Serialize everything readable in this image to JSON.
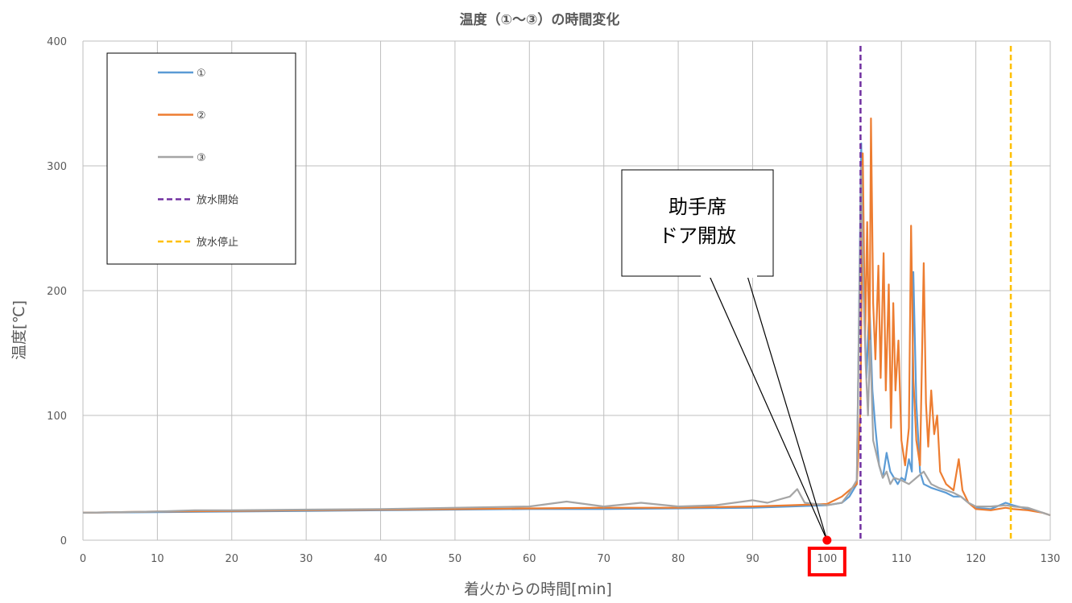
{
  "chart_data": {
    "type": "line",
    "title": "温度（①～③）の時間変化",
    "xlabel": "着火からの時間[min]",
    "ylabel": "温度[℃]",
    "xlim": [
      0,
      130
    ],
    "ylim": [
      0,
      400
    ],
    "xticks": [
      0,
      10,
      20,
      30,
      40,
      50,
      60,
      70,
      80,
      90,
      100,
      110,
      120,
      130
    ],
    "yticks": [
      0,
      100,
      200,
      300,
      400
    ],
    "grid": true,
    "legend_position": "top-left",
    "series": [
      {
        "name": "①",
        "color": "#5B9BD5",
        "points": [
          [
            0,
            22
          ],
          [
            10,
            22.5
          ],
          [
            20,
            23
          ],
          [
            30,
            23.5
          ],
          [
            40,
            24
          ],
          [
            50,
            24.5
          ],
          [
            60,
            25
          ],
          [
            70,
            25
          ],
          [
            80,
            25.5
          ],
          [
            90,
            26
          ],
          [
            95,
            27
          ],
          [
            100,
            28
          ],
          [
            102,
            30
          ],
          [
            103,
            35
          ],
          [
            104,
            45
          ],
          [
            104.6,
            318
          ],
          [
            104.9,
            200
          ],
          [
            105.3,
            130
          ],
          [
            105.7,
            190
          ],
          [
            106.1,
            120
          ],
          [
            106.5,
            90
          ],
          [
            107,
            60
          ],
          [
            107.5,
            50
          ],
          [
            108,
            70
          ],
          [
            108.5,
            55
          ],
          [
            109,
            50
          ],
          [
            109.5,
            45
          ],
          [
            110,
            50
          ],
          [
            110.5,
            48
          ],
          [
            111,
            65
          ],
          [
            111.4,
            55
          ],
          [
            111.6,
            215
          ],
          [
            112,
            110
          ],
          [
            112.5,
            55
          ],
          [
            113,
            45
          ],
          [
            114,
            42
          ],
          [
            115,
            40
          ],
          [
            116,
            38
          ],
          [
            117,
            35
          ],
          [
            118,
            35
          ],
          [
            119,
            30
          ],
          [
            120,
            26
          ],
          [
            122,
            25
          ],
          [
            124,
            30
          ],
          [
            125,
            28
          ],
          [
            127,
            25
          ],
          [
            129,
            22
          ],
          [
            130,
            20
          ]
        ]
      },
      {
        "name": "②",
        "color": "#ED7D31",
        "points": [
          [
            0,
            22
          ],
          [
            10,
            23
          ],
          [
            20,
            23.5
          ],
          [
            30,
            24
          ],
          [
            40,
            24.5
          ],
          [
            50,
            25
          ],
          [
            60,
            25.5
          ],
          [
            70,
            26
          ],
          [
            80,
            26
          ],
          [
            90,
            27
          ],
          [
            95,
            28
          ],
          [
            100,
            29
          ],
          [
            102,
            35
          ],
          [
            103,
            40
          ],
          [
            104,
            45
          ],
          [
            104.5,
            105
          ],
          [
            104.8,
            310
          ],
          [
            105.1,
            160
          ],
          [
            105.4,
            255
          ],
          [
            105.7,
            140
          ],
          [
            105.9,
            338
          ],
          [
            106.2,
            190
          ],
          [
            106.5,
            145
          ],
          [
            106.9,
            220
          ],
          [
            107.2,
            130
          ],
          [
            107.6,
            230
          ],
          [
            107.9,
            120
          ],
          [
            108.3,
            205
          ],
          [
            108.6,
            90
          ],
          [
            108.9,
            190
          ],
          [
            109.2,
            120
          ],
          [
            109.6,
            160
          ],
          [
            110,
            80
          ],
          [
            110.5,
            60
          ],
          [
            111,
            90
          ],
          [
            111.3,
            252
          ],
          [
            111.6,
            130
          ],
          [
            112,
            80
          ],
          [
            112.5,
            60
          ],
          [
            113,
            222
          ],
          [
            113.3,
            110
          ],
          [
            113.6,
            75
          ],
          [
            114,
            120
          ],
          [
            114.4,
            85
          ],
          [
            114.8,
            100
          ],
          [
            115.2,
            55
          ],
          [
            116,
            45
          ],
          [
            117,
            40
          ],
          [
            117.7,
            65
          ],
          [
            118.2,
            40
          ],
          [
            119,
            30
          ],
          [
            120,
            25
          ],
          [
            122,
            24
          ],
          [
            124,
            26
          ],
          [
            125,
            25
          ],
          [
            127,
            24
          ],
          [
            129,
            22
          ],
          [
            130,
            20
          ]
        ]
      },
      {
        "name": "③",
        "color": "#A5A5A5",
        "points": [
          [
            0,
            22
          ],
          [
            10,
            23
          ],
          [
            15,
            24
          ],
          [
            20,
            24
          ],
          [
            30,
            24.5
          ],
          [
            40,
            25
          ],
          [
            50,
            26
          ],
          [
            60,
            27
          ],
          [
            65,
            31
          ],
          [
            70,
            27
          ],
          [
            75,
            30
          ],
          [
            80,
            27
          ],
          [
            85,
            28
          ],
          [
            90,
            32
          ],
          [
            92,
            30
          ],
          [
            95,
            35
          ],
          [
            96,
            41
          ],
          [
            97,
            30
          ],
          [
            100,
            28
          ],
          [
            102,
            30
          ],
          [
            103,
            38
          ],
          [
            104,
            48
          ],
          [
            104.6,
            300
          ],
          [
            104.9,
            200
          ],
          [
            105.2,
            140
          ],
          [
            105.5,
            100
          ],
          [
            105.8,
            160
          ],
          [
            106.2,
            80
          ],
          [
            106.6,
            70
          ],
          [
            107,
            60
          ],
          [
            107.5,
            50
          ],
          [
            108,
            55
          ],
          [
            108.5,
            45
          ],
          [
            109,
            50
          ],
          [
            110,
            48
          ],
          [
            111,
            45
          ],
          [
            112,
            50
          ],
          [
            113,
            55
          ],
          [
            114,
            45
          ],
          [
            115,
            42
          ],
          [
            116,
            40
          ],
          [
            117,
            38
          ],
          [
            118,
            35
          ],
          [
            119,
            30
          ],
          [
            120,
            27
          ],
          [
            122,
            27
          ],
          [
            124,
            28
          ],
          [
            125,
            27
          ],
          [
            127,
            26
          ],
          [
            129,
            22
          ],
          [
            130,
            20
          ]
        ]
      }
    ],
    "vertical_lines": [
      {
        "name": "放水開始",
        "x": 104.5,
        "color": "#7030A0",
        "style": "dashed"
      },
      {
        "name": "放水停止",
        "x": 124.7,
        "color": "#FFC000",
        "style": "dashed"
      }
    ],
    "annotations": [
      {
        "text_lines": [
          "助手席",
          "ドア開放"
        ],
        "x": 100,
        "y": 0,
        "highlight_tick": 100
      }
    ]
  }
}
